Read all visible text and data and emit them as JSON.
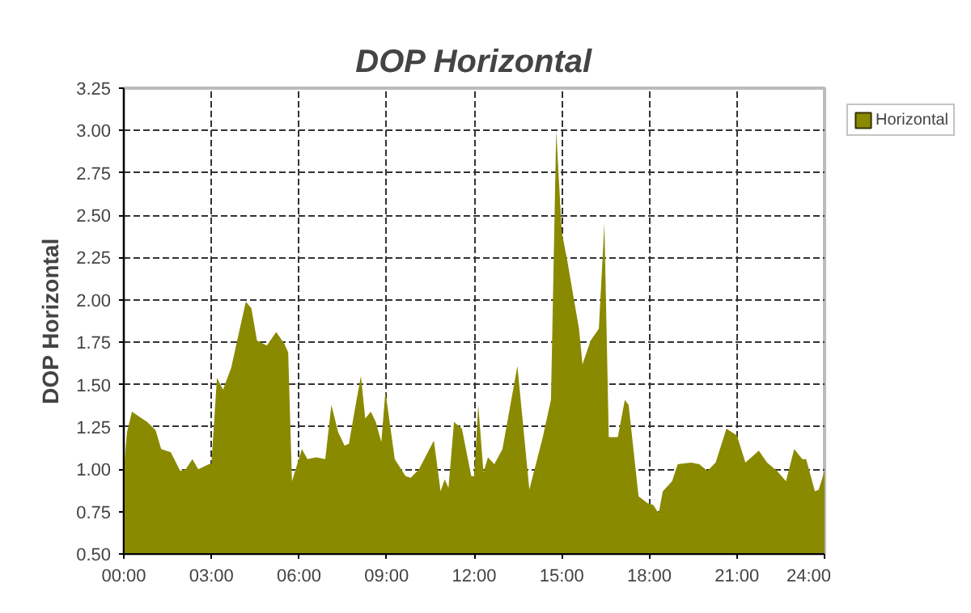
{
  "chart_data": {
    "type": "area",
    "title": "DOP Horizontal",
    "ylabel": "DOP Horizontal",
    "xlim": [
      0,
      24
    ],
    "ylim": [
      0.5,
      3.25
    ],
    "xticks": [
      {
        "value": 0,
        "label": "00:00"
      },
      {
        "value": 3,
        "label": "03:00"
      },
      {
        "value": 6,
        "label": "06:00"
      },
      {
        "value": 9,
        "label": "09:00"
      },
      {
        "value": 12,
        "label": "12:00"
      },
      {
        "value": 15,
        "label": "15:00"
      },
      {
        "value": 18,
        "label": "18:00"
      },
      {
        "value": 21,
        "label": "21:00"
      },
      {
        "value": 24,
        "label": "24:00"
      }
    ],
    "yticks": [
      {
        "value": 0.5,
        "label": "0.50"
      },
      0.75,
      {
        "value": 1.0,
        "label": "1.00"
      },
      1.25,
      {
        "value": 1.5,
        "label": "1.50"
      },
      1.75,
      {
        "value": 2.0,
        "label": "2.00"
      },
      2.25,
      {
        "value": 2.5,
        "label": "2.50"
      },
      2.75,
      {
        "value": 3.0,
        "label": "3.00"
      },
      3.25
    ],
    "grid": true,
    "legend": "top right",
    "series": [
      {
        "name": "Horizontal",
        "color": "#8a8a00",
        "x": [
          0,
          0.11,
          0.28,
          0.53,
          0.8,
          1.09,
          1.28,
          1.61,
          1.93,
          2.12,
          2.35,
          2.55,
          2.91,
          3.0,
          3.19,
          3.4,
          3.68,
          3.96,
          4.18,
          4.37,
          4.56,
          4.9,
          5.22,
          5.5,
          5.63,
          5.76,
          6.1,
          6.29,
          6.59,
          6.9,
          7.11,
          7.34,
          7.56,
          7.71,
          7.9,
          8.12,
          8.27,
          8.46,
          8.63,
          8.82,
          8.96,
          9.28,
          9.65,
          9.83,
          10.11,
          10.38,
          10.62,
          10.85,
          10.99,
          11.12,
          11.31,
          11.58,
          11.9,
          12.0,
          12.14,
          12.32,
          12.47,
          12.69,
          12.97,
          13.48,
          13.89,
          14.35,
          14.63,
          14.81,
          15.0,
          15.18,
          15.59,
          15.71,
          15.99,
          16.27,
          16.46,
          16.61,
          16.92,
          17.16,
          17.29,
          17.63,
          17.94,
          18.13,
          18.32,
          18.46,
          18.78,
          18.97,
          19.43,
          19.71,
          19.99,
          20.27,
          20.64,
          21.0,
          21.29,
          21.75,
          22.03,
          22.37,
          22.68,
          22.96,
          23.24,
          23.37,
          23.67,
          23.8,
          24.0
        ],
        "values": [
          1.0,
          1.22,
          1.34,
          1.31,
          1.28,
          1.23,
          1.12,
          1.1,
          0.99,
          1.0,
          1.06,
          1.0,
          1.03,
          1.03,
          1.54,
          1.47,
          1.6,
          1.82,
          1.99,
          1.95,
          1.76,
          1.73,
          1.81,
          1.74,
          1.69,
          0.93,
          1.12,
          1.06,
          1.07,
          1.06,
          1.38,
          1.22,
          1.14,
          1.15,
          1.34,
          1.55,
          1.3,
          1.34,
          1.28,
          1.16,
          1.46,
          1.06,
          0.96,
          0.95,
          1.0,
          1.09,
          1.17,
          0.87,
          0.94,
          0.89,
          1.28,
          1.24,
          0.96,
          0.96,
          1.38,
          0.98,
          1.07,
          1.03,
          1.12,
          1.61,
          0.88,
          1.19,
          1.41,
          3.0,
          2.4,
          2.24,
          1.83,
          1.62,
          1.76,
          1.83,
          2.45,
          1.19,
          1.19,
          1.41,
          1.38,
          0.84,
          0.8,
          0.79,
          0.74,
          0.87,
          0.93,
          1.03,
          1.04,
          1.03,
          0.99,
          1.04,
          1.24,
          1.2,
          1.04,
          1.11,
          1.04,
          0.99,
          0.93,
          1.12,
          1.06,
          1.06,
          0.87,
          0.88,
          0.99
        ]
      }
    ]
  }
}
